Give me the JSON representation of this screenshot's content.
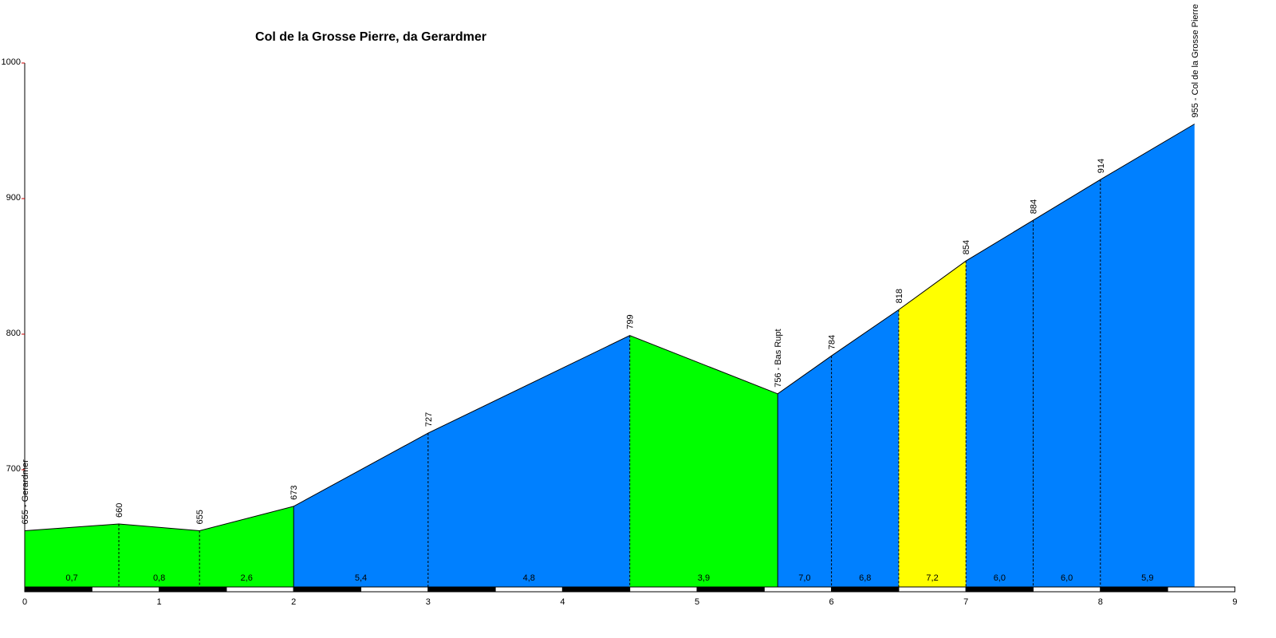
{
  "chart_data": {
    "type": "area",
    "title": "Col de la Grosse Pierre, da Gerardmer",
    "xlabel": "",
    "ylabel": "",
    "xlim": [
      0,
      9
    ],
    "ylim": [
      620,
      1000
    ],
    "x_ticks": [
      "0",
      "1",
      "2",
      "3",
      "4",
      "5",
      "6",
      "7",
      "8",
      "9"
    ],
    "y_ticks": [
      "700",
      "800",
      "900",
      "1000"
    ],
    "profile": [
      {
        "x": 0.0,
        "y": 655,
        "label": "655 - Gerardmer"
      },
      {
        "x": 0.7,
        "y": 660,
        "label": "660"
      },
      {
        "x": 1.3,
        "y": 655,
        "label": "655"
      },
      {
        "x": 2.0,
        "y": 673,
        "label": "673"
      },
      {
        "x": 3.0,
        "y": 727,
        "label": "727"
      },
      {
        "x": 4.5,
        "y": 799,
        "label": "799"
      },
      {
        "x": 5.6,
        "y": 756,
        "label": "756 - Bas Rupt"
      },
      {
        "x": 6.0,
        "y": 784,
        "label": "784"
      },
      {
        "x": 6.5,
        "y": 818,
        "label": "818"
      },
      {
        "x": 7.0,
        "y": 854,
        "label": "854"
      },
      {
        "x": 7.5,
        "y": 884,
        "label": "884"
      },
      {
        "x": 8.0,
        "y": 914,
        "label": "914"
      },
      {
        "x": 8.7,
        "y": 955,
        "label": "955 - Col de la Grosse Pierre"
      }
    ],
    "segments": [
      {
        "from": 0.0,
        "to": 0.7,
        "grade": "0,7",
        "color": "#00ff00"
      },
      {
        "from": 0.7,
        "to": 1.3,
        "grade": "0,8",
        "color": "#00ff00"
      },
      {
        "from": 1.3,
        "to": 2.0,
        "grade": "2,6",
        "color": "#00ff00"
      },
      {
        "from": 2.0,
        "to": 3.0,
        "grade": "5,4",
        "color": "#0080ff"
      },
      {
        "from": 3.0,
        "to": 4.5,
        "grade": "4,8",
        "color": "#0080ff"
      },
      {
        "from": 4.5,
        "to": 5.6,
        "grade": "3,9",
        "color": "#00ff00"
      },
      {
        "from": 5.6,
        "to": 6.0,
        "grade": "7,0",
        "color": "#0080ff"
      },
      {
        "from": 6.0,
        "to": 6.5,
        "grade": "6,8",
        "color": "#0080ff"
      },
      {
        "from": 6.5,
        "to": 7.0,
        "grade": "7,2",
        "color": "#ffff00"
      },
      {
        "from": 7.0,
        "to": 7.5,
        "grade": "6,0",
        "color": "#0080ff"
      },
      {
        "from": 7.5,
        "to": 8.0,
        "grade": "6,0",
        "color": "#0080ff"
      },
      {
        "from": 8.0,
        "to": 8.7,
        "grade": "5,9",
        "color": "#0080ff"
      }
    ],
    "grid": false,
    "legend": "none"
  }
}
